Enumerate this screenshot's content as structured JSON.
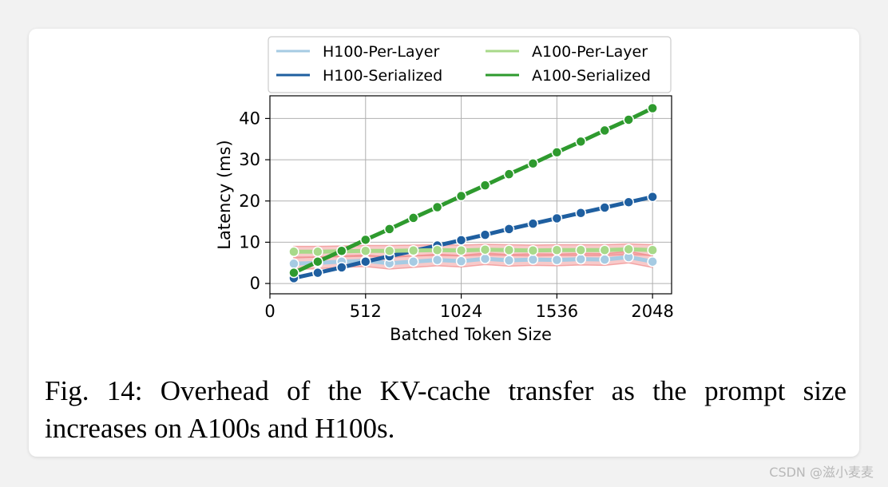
{
  "chart_data": {
    "type": "line",
    "xlabel": "Batched Token Size",
    "ylabel": "Latency (ms)",
    "xlim": [
      0,
      2150
    ],
    "ylim": [
      -2.5,
      45.5
    ],
    "xticks": [
      0,
      512,
      1024,
      1536,
      2048
    ],
    "yticks": [
      0,
      10,
      20,
      30,
      40
    ],
    "grid": true,
    "legend_position": "top",
    "x": [
      128,
      256,
      384,
      512,
      640,
      768,
      896,
      1024,
      1152,
      1280,
      1408,
      1536,
      1664,
      1792,
      1920,
      2048
    ],
    "series": [
      {
        "name": "H100-Per-Layer",
        "color": "#a6cbe3",
        "values": [
          4.8,
          5.0,
          5.3,
          5.5,
          4.9,
          5.3,
          5.7,
          5.4,
          6.0,
          5.6,
          5.8,
          5.7,
          5.9,
          5.8,
          6.4,
          5.3
        ],
        "band": 1.4
      },
      {
        "name": "H100-Serialized",
        "color": "#1f5fa0",
        "values": [
          1.3,
          2.6,
          3.9,
          5.3,
          6.6,
          7.9,
          9.2,
          10.5,
          11.8,
          13.2,
          14.5,
          15.8,
          17.1,
          18.4,
          19.7,
          21.0
        ]
      },
      {
        "name": "A100-Per-Layer",
        "color": "#a8d98a",
        "values": [
          7.7,
          7.7,
          7.8,
          7.9,
          7.9,
          8.0,
          8.1,
          8.0,
          8.2,
          8.1,
          8.0,
          8.1,
          8.1,
          8.1,
          8.3,
          8.1
        ],
        "band": 1.3
      },
      {
        "name": "A100-Serialized",
        "color": "#2e9a2e",
        "values": [
          2.6,
          5.3,
          7.9,
          10.6,
          13.2,
          15.9,
          18.5,
          21.2,
          23.8,
          26.5,
          29.1,
          31.8,
          34.4,
          37.1,
          39.7,
          42.5
        ]
      }
    ],
    "band_color": "#f08a8a"
  },
  "caption": "Fig. 14: Overhead of the KV-cache transfer as the prompt size increases on A100s and H100s.",
  "watermark": "CSDN @滋小麦麦"
}
